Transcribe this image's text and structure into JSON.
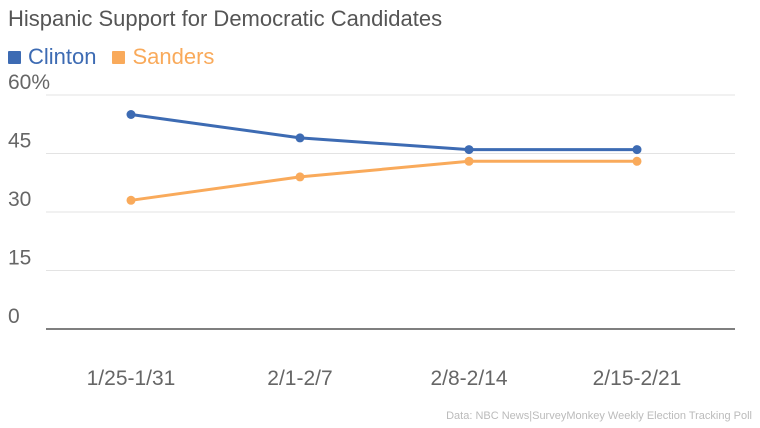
{
  "chart_data": {
    "type": "line",
    "title": "Hispanic Support for Democratic Candidates",
    "categories": [
      "1/25-1/31",
      "2/1-2/7",
      "2/8-2/14",
      "2/15-2/21"
    ],
    "series": [
      {
        "name": "Clinton",
        "values": [
          55,
          49,
          46,
          46
        ],
        "color": "#3d6bb3"
      },
      {
        "name": "Sanders",
        "values": [
          33,
          39,
          43,
          43
        ],
        "color": "#f9aa5b"
      }
    ],
    "yticks": [
      "60%",
      "45",
      "30",
      "15",
      "0"
    ],
    "ytick_values": [
      60,
      45,
      30,
      15,
      0
    ],
    "ylim": [
      0,
      60
    ],
    "grid": true,
    "legend_position": "top-left",
    "source": "Data: NBC News|SurveyMonkey Weekly Election Tracking Poll"
  }
}
